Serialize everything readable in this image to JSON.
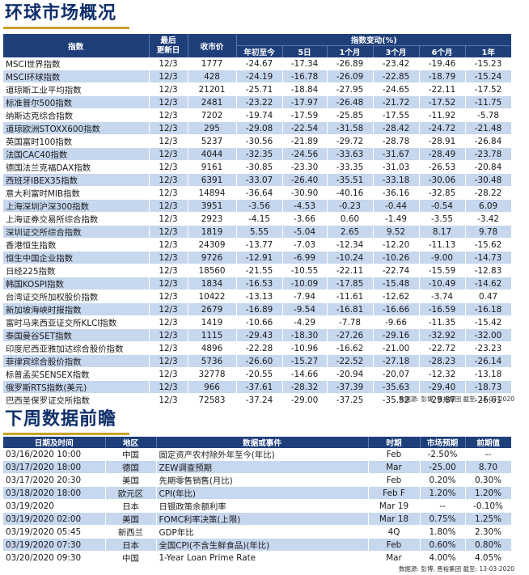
{
  "markets": {
    "title": "环球市场概况",
    "headers": {
      "name": "指数",
      "date_line1": "最后",
      "date_line2": "更新日",
      "price": "收市价",
      "change_group": "指数变动(%)",
      "periods": [
        "年初至今",
        "5日",
        "1个月",
        "3个月",
        "6个月",
        "1年"
      ]
    },
    "rows": [
      [
        "MSCI世界指数",
        "12/3",
        "1777",
        "-24.67",
        "-17.34",
        "-26.89",
        "-23.42",
        "-19.46",
        "-15.23"
      ],
      [
        "MSCI环球指数",
        "12/3",
        "428",
        "-24.19",
        "-16.78",
        "-26.09",
        "-22.85",
        "-18.79",
        "-15.24"
      ],
      [
        "道琼斯工业平均指数",
        "12/3",
        "21201",
        "-25.71",
        "-18.84",
        "-27.95",
        "-24.65",
        "-22.11",
        "-17.52"
      ],
      [
        "标准普尔500指数",
        "12/3",
        "2481",
        "-23.22",
        "-17.97",
        "-26.48",
        "-21.72",
        "-17.52",
        "-11.75"
      ],
      [
        "纳斯达克综合指数",
        "12/3",
        "7202",
        "-19.74",
        "-17.59",
        "-25.85",
        "-17.55",
        "-11.92",
        "-5.78"
      ],
      [
        "道琼欧洲STOXX600指数",
        "12/3",
        "295",
        "-29.08",
        "-22.54",
        "-31.58",
        "-28.42",
        "-24.72",
        "-21.48"
      ],
      [
        "英国富时100指数",
        "12/3",
        "5237",
        "-30.56",
        "-21.89",
        "-29.72",
        "-28.78",
        "-28.91",
        "-26.84"
      ],
      [
        "法国CAC40指数",
        "12/3",
        "4044",
        "-32.35",
        "-24.56",
        "-33.63",
        "-31.67",
        "-28.49",
        "-23.78"
      ],
      [
        "德国法兰克福DAX指数",
        "12/3",
        "9161",
        "-30.85",
        "-23.30",
        "-33.35",
        "-31.03",
        "-26.53",
        "-20.84"
      ],
      [
        "西班牙IBEX35指数",
        "12/3",
        "6391",
        "-33.07",
        "-26.40",
        "-35.51",
        "-33.18",
        "-30.06",
        "-30.48"
      ],
      [
        "意大利富时MIB指数",
        "12/3",
        "14894",
        "-36.64",
        "-30.90",
        "-40.16",
        "-36.16",
        "-32.85",
        "-28.22"
      ],
      [
        "上海深圳沪深300指数",
        "12/3",
        "3951",
        "-3.56",
        "-4.53",
        "-0.23",
        "-0.44",
        "-0.54",
        "6.09"
      ],
      [
        "上海证券交易所综合指数",
        "12/3",
        "2923",
        "-4.15",
        "-3.66",
        "0.60",
        "-1.49",
        "-3.55",
        "-3.42"
      ],
      [
        "深圳证交所综合指数",
        "12/3",
        "1819",
        "5.55",
        "-5.04",
        "2.65",
        "9.52",
        "8.17",
        "9.78"
      ],
      [
        "香港恒生指数",
        "12/3",
        "24309",
        "-13.77",
        "-7.03",
        "-12.34",
        "-12.20",
        "-11.13",
        "-15.62"
      ],
      [
        "恒生中国企业指数",
        "12/3",
        "9726",
        "-12.91",
        "-6.99",
        "-10.24",
        "-10.26",
        "-9.00",
        "-14.73"
      ],
      [
        "日经225指数",
        "12/3",
        "18560",
        "-21.55",
        "-10.55",
        "-22.11",
        "-22.74",
        "-15.59",
        "-12.83"
      ],
      [
        "韩国KOSPI指数",
        "12/3",
        "1834",
        "-16.53",
        "-10.09",
        "-17.85",
        "-15.48",
        "-10.49",
        "-14.62"
      ],
      [
        "台湾证交所加权股价指数",
        "12/3",
        "10422",
        "-13.13",
        "-7.94",
        "-11.61",
        "-12.62",
        "-3.74",
        "0.47"
      ],
      [
        "新加坡海峡时报指数",
        "12/3",
        "2679",
        "-16.89",
        "-9.54",
        "-16.81",
        "-16.66",
        "-16.59",
        "-16.18"
      ],
      [
        "富时马来西亚证交所KLCI指数",
        "12/3",
        "1419",
        "-10.66",
        "-4.29",
        "-7.78",
        "-9.66",
        "-11.35",
        "-15.42"
      ],
      [
        "泰国曼谷SET指数",
        "12/3",
        "1115",
        "-29.43",
        "-18.30",
        "-27.26",
        "-29.16",
        "-32.92",
        "-32.00"
      ],
      [
        "印度尼西亚雅加达综合股价指数",
        "12/3",
        "4896",
        "-22.28",
        "-10.96",
        "-16.62",
        "-21.00",
        "-22.72",
        "-23.23"
      ],
      [
        "菲律宾综合股价指数",
        "12/3",
        "5736",
        "-26.60",
        "-15.27",
        "-22.52",
        "-27.18",
        "-28.23",
        "-26.14"
      ],
      [
        "标普孟买SENSEX指数",
        "12/3",
        "32778",
        "-20.55",
        "-14.66",
        "-20.94",
        "-20.07",
        "-12.32",
        "-13.18"
      ],
      [
        "俄罗斯RTS指数(美元)",
        "12/3",
        "966",
        "-37.61",
        "-28.32",
        "-37.39",
        "-35.63",
        "-29.40",
        "-18.73"
      ],
      [
        "巴西圣保罗证交所指数",
        "12/3",
        "72583",
        "-37.24",
        "-29.00",
        "-37.25",
        "-35.52",
        "-29.87",
        "-26.61"
      ]
    ],
    "source": "数据源: 彭博, 晋裕集团 截至: 13-03-2020"
  },
  "calendar": {
    "title": "下周数据前瞻",
    "headers": {
      "datetime": "日期及时间",
      "region": "地区",
      "event": "数据或事件",
      "period": "时期",
      "forecast": "市场预期",
      "previous": "前期值"
    },
    "rows": [
      [
        "03/16/2020 10:00",
        "中国",
        "固定资产农村除外年至今(年比)",
        "Feb",
        "-2.50%",
        "--"
      ],
      [
        "03/17/2020 18:00",
        "德国",
        "ZEW调查预期",
        "Mar",
        "-25.00",
        "8.70"
      ],
      [
        "03/17/2020 20:30",
        "美国",
        "先期零售销售(月比)",
        "Feb",
        "0.20%",
        "0.30%"
      ],
      [
        "03/18/2020 18:00",
        "欧元区",
        "CPI(年比)",
        "Feb F",
        "1.20%",
        "1.20%"
      ],
      [
        "03/19/2020",
        "日本",
        "日银政策余额利率",
        "Mar 19",
        "--",
        "-0.10%"
      ],
      [
        "03/19/2020 02:00",
        "美国",
        "FOMC利率决策(上限)",
        "Mar 18",
        "0.75%",
        "1.25%"
      ],
      [
        "03/19/2020 05:45",
        "新西兰",
        "GDP年比",
        "4Q",
        "1.80%",
        "2.30%"
      ],
      [
        "03/19/2020 07:30",
        "日本",
        "全国CPI(不含生鲜食品)(年比)",
        "Feb",
        "0.60%",
        "0.80%"
      ],
      [
        "03/20/2020 09:30",
        "中国",
        "1-Year Loan Prime Rate",
        "Mar",
        "4.00%",
        "4.05%"
      ]
    ],
    "source": "数据源: 彭博, 晋裕集团 截至: 13-03-2020"
  }
}
